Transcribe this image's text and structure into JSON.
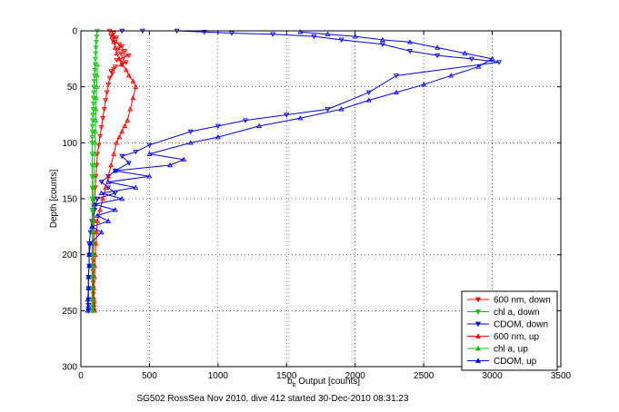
{
  "chart_data": {
    "type": "line",
    "xlabel": "b",
    "xlabel_sub": "b",
    "xlabel_rest": " Output [counts]",
    "ylabel": "Depth [counts]",
    "footer": "SG502 RossSea Nov 2010, dive 412 started 30-Dec-2010 08:31:23",
    "xlim": [
      0,
      3500
    ],
    "ylim": [
      300,
      0
    ],
    "y_reversed": true,
    "grid": true,
    "legend_placement": "bottom-right",
    "xticks": [
      0,
      500,
      1000,
      1500,
      2000,
      2500,
      3000,
      3500
    ],
    "yticks": [
      0,
      50,
      100,
      150,
      200,
      250,
      300
    ],
    "series": [
      {
        "name": "600 nm, down",
        "color": "#ff0000",
        "marker": "triangle-down",
        "x": [
          210,
          240,
          220,
          260,
          230,
          250,
          280,
          300,
          270,
          320,
          290,
          350,
          310,
          260,
          330,
          300,
          250,
          240,
          220,
          230,
          210,
          200,
          190,
          180,
          170,
          160,
          150,
          140,
          130,
          120,
          115,
          110,
          105,
          100,
          100,
          95,
          95,
          95,
          90,
          90,
          90,
          90,
          90,
          90,
          90,
          90,
          90,
          95,
          95,
          95
        ],
        "y": [
          0,
          2,
          4,
          6,
          8,
          10,
          12,
          14,
          16,
          18,
          20,
          22,
          24,
          26,
          28,
          30,
          32,
          34,
          36,
          38,
          42,
          48,
          55,
          62,
          70,
          78,
          86,
          94,
          102,
          110,
          120,
          130,
          140,
          150,
          160,
          170,
          180,
          190,
          200,
          205,
          210,
          215,
          220,
          225,
          230,
          235,
          240,
          244,
          247,
          250
        ]
      },
      {
        "name": "chl a, down",
        "color": "#00c800",
        "marker": "triangle-down",
        "x": [
          120,
          115,
          112,
          110,
          108,
          106,
          104,
          102,
          100,
          98,
          96,
          95,
          93,
          92,
          90,
          88,
          86,
          85,
          84,
          83,
          82,
          82,
          82,
          82,
          82,
          82,
          82,
          82,
          82,
          82,
          82,
          82,
          82,
          82,
          82,
          82,
          82,
          82
        ],
        "y": [
          0,
          5,
          10,
          15,
          20,
          25,
          30,
          35,
          40,
          45,
          50,
          55,
          60,
          65,
          70,
          75,
          80,
          85,
          90,
          95,
          100,
          110,
          120,
          130,
          140,
          150,
          160,
          170,
          180,
          190,
          200,
          210,
          220,
          230,
          240,
          245,
          248,
          250
        ]
      },
      {
        "name": "CDOM, down",
        "color": "#0000ff",
        "marker": "triangle-down",
        "x": [
          300,
          450,
          700,
          900,
          1100,
          1400,
          1700,
          1900,
          2200,
          2400,
          2600,
          2850,
          3050,
          2300,
          2100,
          1800,
          1500,
          1200,
          1000,
          800,
          500,
          400,
          300,
          350,
          250,
          200,
          150,
          200,
          250,
          120,
          100,
          80,
          70,
          60,
          60,
          60,
          55,
          55,
          55,
          55,
          55,
          55
        ],
        "y": [
          0,
          0,
          0,
          1,
          2,
          3,
          5,
          8,
          12,
          18,
          22,
          25,
          28,
          40,
          55,
          70,
          75,
          80,
          85,
          90,
          102,
          108,
          112,
          118,
          125,
          130,
          135,
          140,
          145,
          150,
          160,
          170,
          180,
          190,
          200,
          210,
          220,
          230,
          240,
          245,
          248,
          250
        ]
      },
      {
        "name": "600 nm, up",
        "color": "#ff0000",
        "marker": "triangle-up",
        "x": [
          100,
          95,
          95,
          100,
          100,
          105,
          110,
          115,
          120,
          140,
          160,
          180,
          200,
          220,
          240,
          260,
          280,
          300,
          320,
          340,
          360,
          380,
          400,
          380,
          350,
          330,
          300,
          280,
          260,
          250,
          240,
          230
        ],
        "y": [
          250,
          240,
          230,
          220,
          210,
          200,
          190,
          180,
          170,
          160,
          150,
          140,
          130,
          120,
          110,
          100,
          95,
          90,
          85,
          80,
          70,
          60,
          50,
          45,
          40,
          35,
          30,
          25,
          20,
          15,
          10,
          5
        ]
      },
      {
        "name": "chl a, up",
        "color": "#00c800",
        "marker": "triangle-up",
        "x": [
          85,
          85,
          85,
          85,
          85,
          85,
          85,
          86,
          87,
          88,
          90,
          92,
          95,
          98,
          100,
          102,
          105,
          108,
          110,
          112,
          115,
          118,
          120
        ],
        "y": [
          250,
          240,
          230,
          220,
          210,
          200,
          190,
          180,
          170,
          160,
          150,
          140,
          130,
          120,
          110,
          100,
          90,
          80,
          70,
          60,
          50,
          40,
          30
        ]
      },
      {
        "name": "CDOM, up",
        "color": "#0000ff",
        "marker": "triangle-up",
        "x": [
          50,
          50,
          55,
          55,
          60,
          60,
          70,
          150,
          80,
          200,
          120,
          250,
          100,
          300,
          150,
          400,
          200,
          500,
          250,
          650,
          750,
          500,
          800,
          1000,
          1300,
          1600,
          1900,
          2100,
          2300,
          2500,
          2700,
          2900,
          3000,
          2800,
          2600,
          2400,
          2200,
          2000,
          1800,
          1600
        ],
        "y": [
          250,
          240,
          230,
          220,
          210,
          200,
          190,
          180,
          175,
          170,
          165,
          160,
          155,
          150,
          145,
          140,
          135,
          130,
          125,
          120,
          115,
          110,
          100,
          95,
          85,
          78,
          70,
          62,
          55,
          48,
          40,
          32,
          25,
          20,
          15,
          10,
          8,
          5,
          3,
          1
        ]
      }
    ]
  }
}
